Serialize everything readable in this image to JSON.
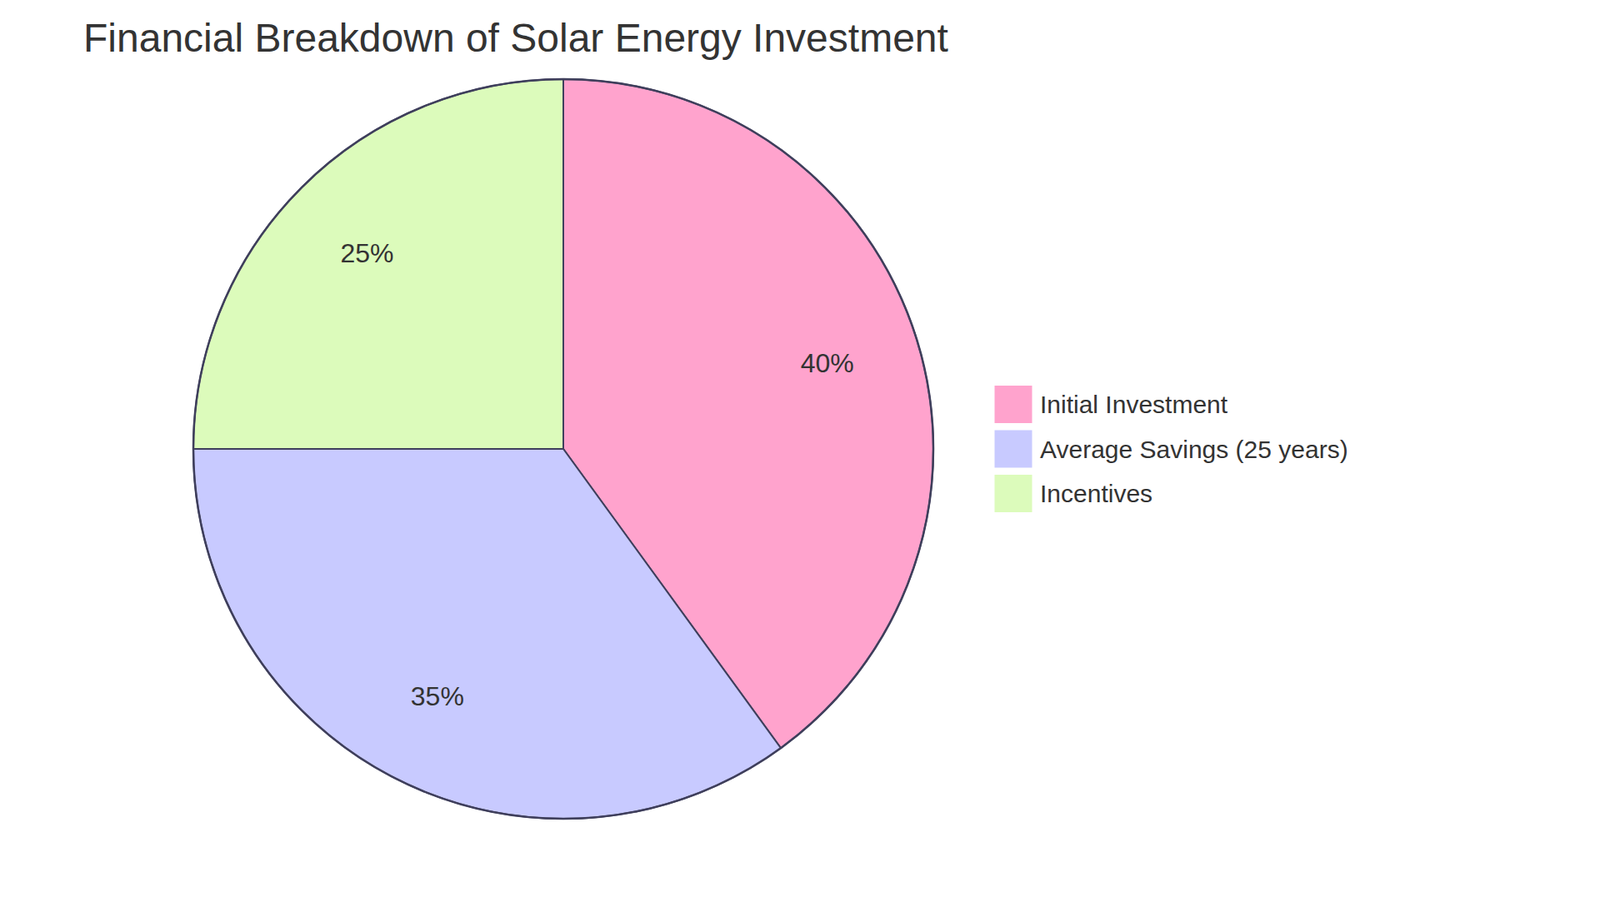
{
  "chart_data": {
    "type": "pie",
    "title": "Financial Breakdown of Solar Energy Investment",
    "categories": [
      "Initial Investment",
      "Average Savings (25 years)",
      "Incentives"
    ],
    "values": [
      40,
      35,
      25
    ],
    "value_labels": [
      "40%",
      "35%",
      "25%"
    ],
    "colors": [
      "#ffa3cd",
      "#c8caff",
      "#dcfbbb"
    ],
    "data_labels": true,
    "legend": "right"
  }
}
